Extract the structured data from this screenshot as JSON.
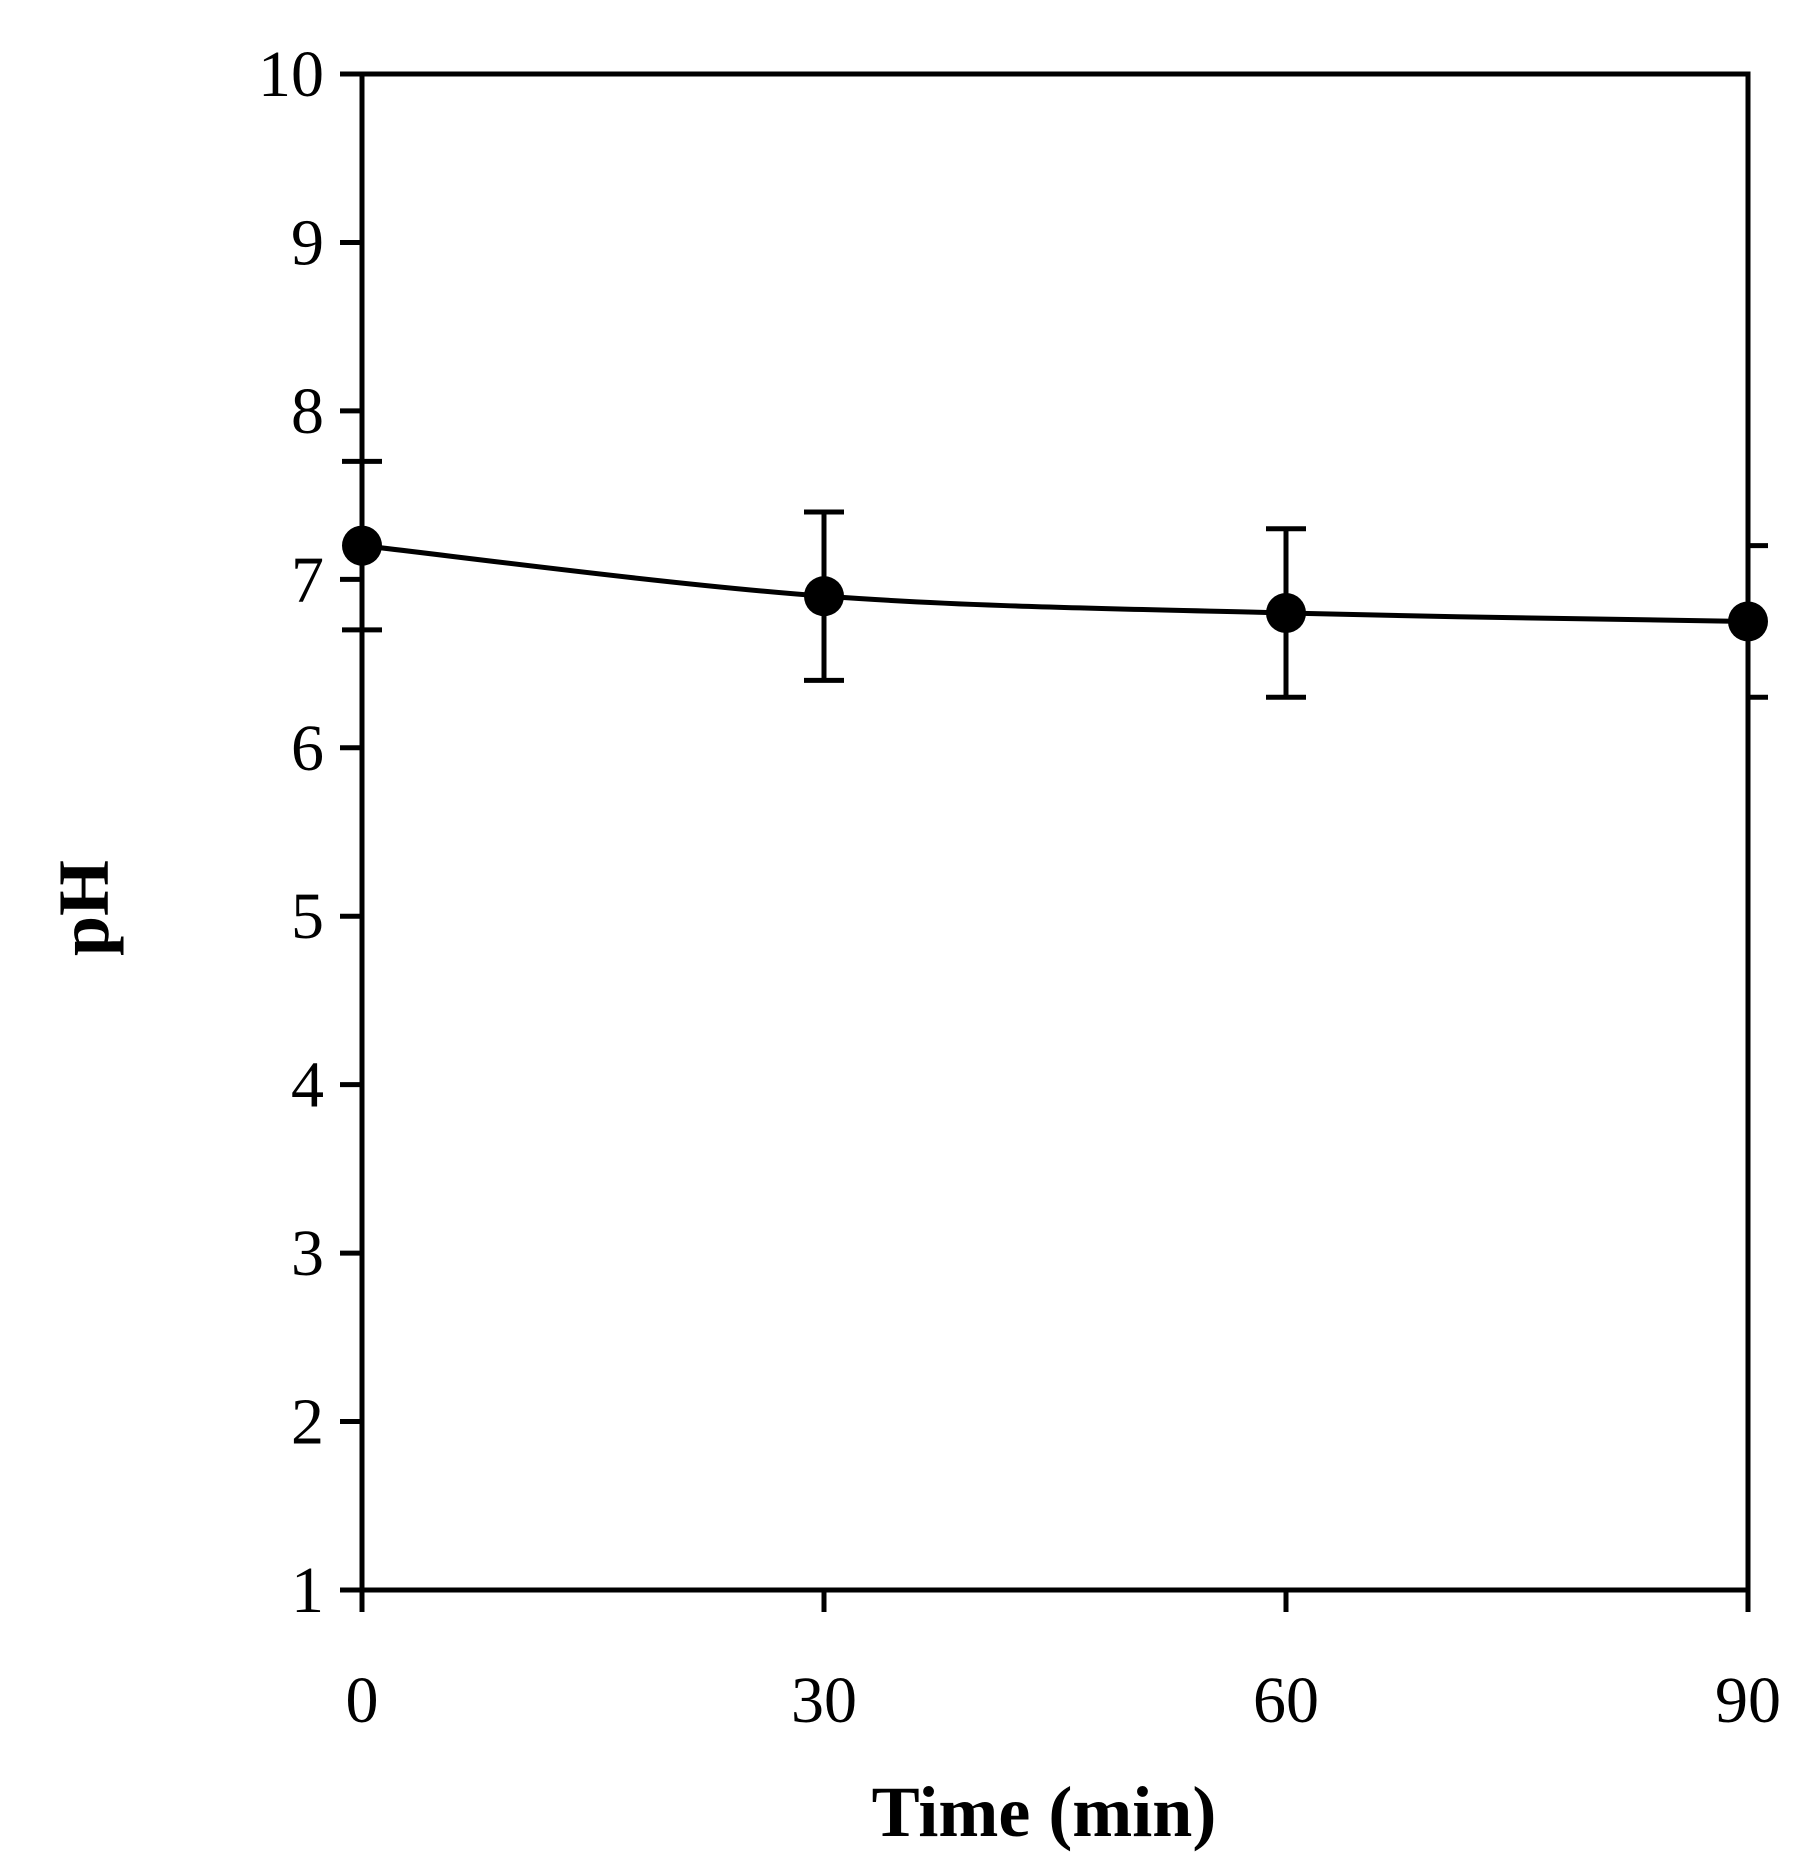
{
  "chart_data": {
    "type": "line",
    "title": "",
    "xlabel": "Time (min)",
    "ylabel": "pH",
    "xlim": [
      0,
      90
    ],
    "ylim": [
      1,
      10
    ],
    "xticks": [
      0,
      30,
      60,
      90
    ],
    "yticks": [
      1,
      2,
      3,
      4,
      5,
      6,
      7,
      8,
      9,
      10
    ],
    "grid": false,
    "legend": "none",
    "series": [
      {
        "name": "pH",
        "x": [
          0,
          30,
          60,
          90
        ],
        "values": [
          7.2,
          6.9,
          6.8,
          6.75
        ],
        "error": [
          0.5,
          0.5,
          0.5,
          0.45
        ],
        "marker": "filled-circle",
        "line": "smooth",
        "color": "#000000"
      }
    ]
  }
}
